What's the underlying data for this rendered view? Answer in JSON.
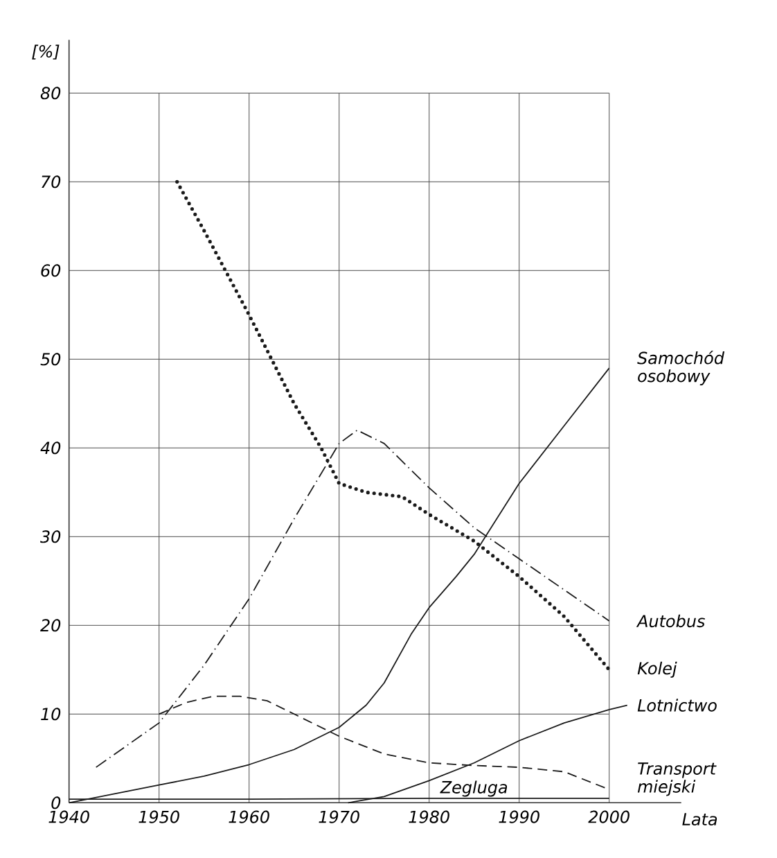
{
  "chart_data": {
    "type": "line",
    "ylabel": "[%]",
    "xlabel": "Lata",
    "xlim": [
      1940,
      2008
    ],
    "ylim": [
      0,
      86
    ],
    "xticks": [
      1940,
      1950,
      1960,
      1970,
      1980,
      1990,
      2000
    ],
    "yticks": [
      0,
      10,
      20,
      30,
      40,
      50,
      60,
      70,
      80
    ],
    "grid": true,
    "marker": "none",
    "series": [
      {
        "name": "Samochód osobowy",
        "color": "#1a1a1a",
        "line_style": "solid",
        "x": [
          1940,
          1945,
          1950,
          1955,
          1960,
          1965,
          1970,
          1973,
          1975,
          1978,
          1980,
          1983,
          1985,
          1990,
          1995,
          2000
        ],
        "values": [
          0,
          1,
          2,
          3,
          4.3,
          6,
          8.5,
          11,
          13.5,
          19,
          22,
          25.5,
          28,
          36,
          42.5,
          49
        ]
      },
      {
        "name": "Autobus",
        "color": "#1a1a1a",
        "line_style": "dashdot",
        "x": [
          1943,
          1950,
          1955,
          1960,
          1965,
          1970,
          1972,
          1975,
          1980,
          1985,
          1990,
          1995,
          2000
        ],
        "values": [
          4,
          9,
          15.5,
          23,
          32,
          40.5,
          42,
          40.5,
          35.5,
          31,
          27.5,
          24,
          20.5
        ]
      },
      {
        "name": "Kolej",
        "color": "#1a1a1a",
        "line_style": "dotted",
        "x": [
          1952,
          1955,
          1960,
          1965,
          1968,
          1970,
          1973,
          1977,
          1980,
          1985,
          1990,
          1995,
          2000
        ],
        "values": [
          70,
          64.5,
          55,
          45,
          40,
          36,
          35,
          34.5,
          32.5,
          29.5,
          25.5,
          21,
          15
        ]
      },
      {
        "name": "Lotnictwo",
        "color": "#1a1a1a",
        "line_style": "solid",
        "x": [
          1971,
          1975,
          1980,
          1985,
          1990,
          1995,
          2000,
          2002
        ],
        "values": [
          0,
          0.7,
          2.5,
          4.5,
          7,
          9,
          10.5,
          11
        ]
      },
      {
        "name": "Transport miejski",
        "color": "#1a1a1a",
        "line_style": "dashed",
        "x": [
          1950,
          1953,
          1956,
          1959,
          1962,
          1965,
          1970,
          1975,
          1980,
          1985,
          1990,
          1995,
          2000
        ],
        "values": [
          10,
          11.3,
          12,
          12,
          11.5,
          10,
          7.5,
          5.5,
          4.5,
          4.2,
          4,
          3.5,
          1.5
        ]
      },
      {
        "name": "Zegluga",
        "color": "#1a1a1a",
        "line_style": "solid",
        "x": [
          1940,
          1960,
          1980,
          2000
        ],
        "values": [
          0.4,
          0.4,
          0.5,
          0.5
        ]
      }
    ]
  }
}
